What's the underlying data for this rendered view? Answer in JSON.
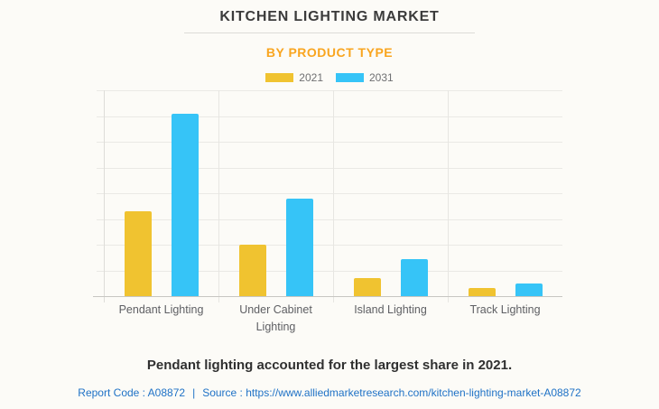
{
  "page": {
    "background": "#FCFBF7"
  },
  "header": {
    "title": "KITCHEN LIGHTING MARKET",
    "subtitle": "BY PRODUCT TYPE"
  },
  "legend": {
    "position": "top",
    "items": [
      {
        "label": "2021",
        "color": "#F0C330"
      },
      {
        "label": "2031",
        "color": "#36C4F7"
      }
    ]
  },
  "chart_data": {
    "type": "bar",
    "title": "KITCHEN LIGHTING MARKET",
    "subtitle": "BY PRODUCT TYPE",
    "categories": [
      "Pendant Lighting",
      "Under Cabinet Lighting",
      "Island Lighting",
      "Track Lighting"
    ],
    "series": [
      {
        "name": "2021",
        "color": "#F0C330",
        "values": [
          3.3,
          2.0,
          0.7,
          0.3
        ]
      },
      {
        "name": "2031",
        "color": "#36C4F7",
        "values": [
          7.1,
          3.8,
          1.45,
          0.5
        ]
      }
    ],
    "ylim": [
      0,
      8
    ],
    "gridline_interval": 1,
    "y_tick_labels_visible": false,
    "grid": "horizontal gridlines with left tick stubs, vertical category separator lines with below-axis tick stubs",
    "legend_position": "top",
    "note": "values estimated in gridline units; no numeric value axis labels are shown in the figure",
    "colors": {
      "gridline": "#EAE9E5",
      "axis": "#DEDDD9",
      "baseline": "#C7C6C2"
    }
  },
  "footer": {
    "headline": "Pendant lighting accounted for the largest share in 2021.",
    "report_code": "Report Code : A08872",
    "separator": "|",
    "source": "Source : https://www.alliedmarketresearch.com/kitchen-lighting-market-A08872"
  }
}
